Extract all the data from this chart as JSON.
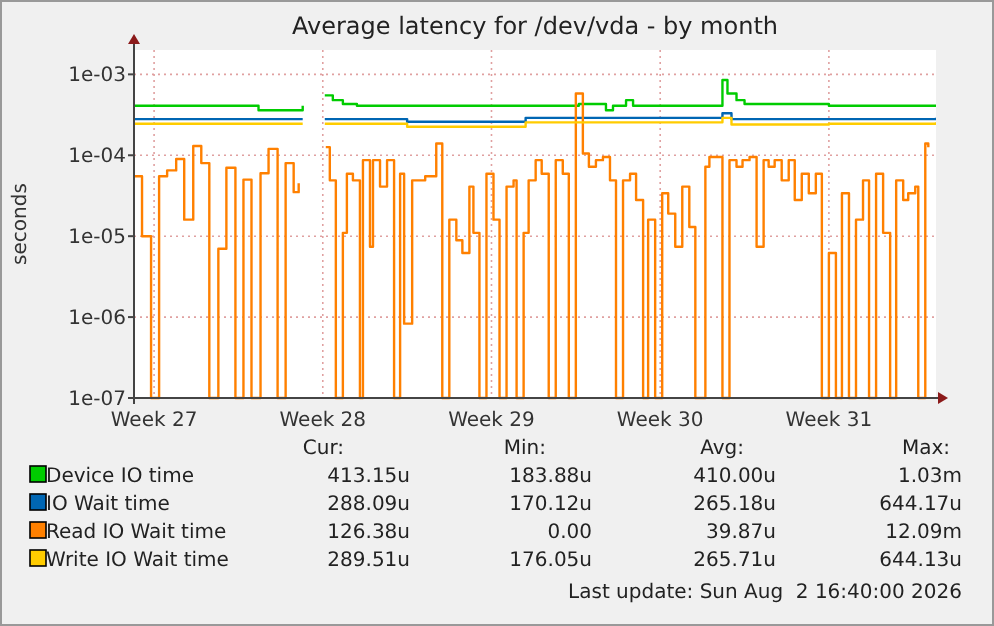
{
  "chart_data": {
    "type": "step",
    "title": "Average latency for /dev/vda - by month",
    "ylabel": "seconds",
    "log": "y",
    "grid": true,
    "legend": "bottom",
    "xlim": [
      "2026-06-30T10:00",
      "2026-08-02T16:40"
    ],
    "xticks": [
      {
        "value": "2026-07-01T06:00",
        "label": "Week 27"
      },
      {
        "value": "2026-07-08T06:00",
        "label": "Week 28"
      },
      {
        "value": "2026-07-15T06:00",
        "label": "Week 29"
      },
      {
        "value": "2026-07-22T06:00",
        "label": "Week 30"
      },
      {
        "value": "2026-07-29T06:00",
        "label": "Week 31"
      }
    ],
    "ylim": [
      1e-07,
      0.002
    ],
    "yticks": [
      {
        "value": 1e-07,
        "label": "1e-07"
      },
      {
        "value": 1e-06,
        "label": "1e-06"
      },
      {
        "value": 1e-05,
        "label": "1e-05"
      },
      {
        "value": 0.0001,
        "label": "1e-04"
      },
      {
        "value": 0.001,
        "label": "1e-03"
      }
    ],
    "series": [
      {
        "name": "Device IO time",
        "color": "#00cc00",
        "x": [
          "2026-06-30T10:00",
          "2026-07-02T16:00",
          "2026-07-05T07:00",
          "2026-07-05T14:00",
          "2026-07-07T10:00",
          "2026-07-07T18:00",
          "2026-07-08T08:00",
          "2026-07-08T16:00",
          "2026-07-09T02:00",
          "2026-07-09T16:00",
          "2026-07-12T11:00",
          "2026-07-15T06:00",
          "2026-07-18T18:00",
          "2026-07-18T21:00",
          "2026-07-20T00:00",
          "2026-07-20T07:00",
          "2026-07-20T20:00",
          "2026-07-21T03:00",
          "2026-07-24T08:00",
          "2026-07-24T20:00",
          "2026-07-25T01:00",
          "2026-07-25T10:00",
          "2026-07-25T18:00",
          "2026-07-29T06:00",
          "2026-08-02T16:40"
        ],
        "values": [
          0.00041,
          0.00041,
          0.00041,
          0.00036,
          0.00041,
          null,
          0.00055,
          0.00048,
          0.00043,
          0.00041,
          0.00041,
          0.00041,
          0.00041,
          0.00043,
          0.00036,
          0.00041,
          0.00048,
          0.00041,
          0.00041,
          0.00085,
          0.00058,
          0.00048,
          0.00043,
          0.00041,
          0.00041
        ]
      },
      {
        "name": "IO Wait time",
        "color": "#0066b3",
        "x": [
          "2026-06-30T10:00",
          "2026-07-04T18:00",
          "2026-07-07T10:00",
          "2026-07-07T18:00",
          "2026-07-08T08:00",
          "2026-07-11T18:00",
          "2026-07-15T06:00",
          "2026-07-16T16:00",
          "2026-07-22T06:00",
          "2026-07-24T20:00",
          "2026-07-25T05:00",
          "2026-07-29T06:00",
          "2026-08-02T16:40"
        ],
        "values": [
          0.00028,
          0.00028,
          0.00028,
          null,
          0.00028,
          0.00026,
          0.00026,
          0.00029,
          0.00029,
          0.00033,
          0.00028,
          0.00028,
          0.00029
        ]
      },
      {
        "name": "Read IO Wait time",
        "color": "#ff8000",
        "x": [
          "2026-06-30T10:00",
          "2026-06-30T18:00",
          "2026-07-01T03:00",
          "2026-07-01T11:00",
          "2026-07-01T19:00",
          "2026-07-02T04:00",
          "2026-07-02T12:00",
          "2026-07-02T21:00",
          "2026-07-03T05:00",
          "2026-07-03T13:00",
          "2026-07-03T22:00",
          "2026-07-04T06:00",
          "2026-07-04T15:00",
          "2026-07-04T23:00",
          "2026-07-05T07:00",
          "2026-07-05T16:00",
          "2026-07-06T00:00",
          "2026-07-06T09:00",
          "2026-07-06T17:00",
          "2026-07-07T01:00",
          "2026-07-07T06:00",
          "2026-07-07T18:00",
          "2026-07-08T09:00",
          "2026-07-08T13:00",
          "2026-07-08T19:00",
          "2026-07-09T02:00",
          "2026-07-09T06:00",
          "2026-07-09T12:00",
          "2026-07-09T19:00",
          "2026-07-09T22:00",
          "2026-07-10T05:00",
          "2026-07-10T08:00",
          "2026-07-10T15:00",
          "2026-07-10T22:00",
          "2026-07-11T05:00",
          "2026-07-11T11:00",
          "2026-07-11T15:00",
          "2026-07-11T23:00",
          "2026-07-12T12:00",
          "2026-07-12T23:00",
          "2026-07-13T05:00",
          "2026-07-13T12:00",
          "2026-07-13T19:00",
          "2026-07-14T01:00",
          "2026-07-14T08:00",
          "2026-07-14T12:00",
          "2026-07-14T18:00",
          "2026-07-15T01:00",
          "2026-07-15T08:00",
          "2026-07-15T14:00",
          "2026-07-15T21:00",
          "2026-07-16T04:00",
          "2026-07-16T07:00",
          "2026-07-16T14:00",
          "2026-07-16T19:00",
          "2026-07-17T02:00",
          "2026-07-17T08:00",
          "2026-07-17T15:00",
          "2026-07-17T22:00",
          "2026-07-18T05:00",
          "2026-07-18T11:00",
          "2026-07-18T18:00",
          "2026-07-19T01:00",
          "2026-07-19T07:00",
          "2026-07-19T14:00",
          "2026-07-19T21:00",
          "2026-07-20T04:00",
          "2026-07-20T10:00",
          "2026-07-20T17:00",
          "2026-07-21T00:00",
          "2026-07-21T06:00",
          "2026-07-21T13:00",
          "2026-07-21T18:00",
          "2026-07-22T01:00",
          "2026-07-22T08:00",
          "2026-07-22T14:00",
          "2026-07-22T21:00",
          "2026-07-23T04:00",
          "2026-07-23T11:00",
          "2026-07-23T17:00",
          "2026-07-24T03:00",
          "2026-07-24T07:00",
          "2026-07-24T13:00",
          "2026-07-24T20:00",
          "2026-07-25T03:00",
          "2026-07-25T10:00",
          "2026-07-25T16:00",
          "2026-07-25T23:00",
          "2026-07-26T06:00",
          "2026-07-26T13:00",
          "2026-07-26T18:00",
          "2026-07-27T00:00",
          "2026-07-27T07:00",
          "2026-07-27T14:00",
          "2026-07-27T20:00",
          "2026-07-28T03:00",
          "2026-07-28T10:00",
          "2026-07-28T17:00",
          "2026-07-28T23:00",
          "2026-07-29T06:00",
          "2026-07-29T13:00",
          "2026-07-29T19:00",
          "2026-07-30T02:00",
          "2026-07-30T09:00",
          "2026-07-30T16:00",
          "2026-07-30T22:00",
          "2026-07-31T05:00",
          "2026-07-31T12:00",
          "2026-07-31T19:00",
          "2026-08-01T01:00",
          "2026-08-01T08:00",
          "2026-08-01T13:00",
          "2026-08-01T20:00",
          "2026-08-01T23:00",
          "2026-08-02T06:00",
          "2026-08-02T09:00"
        ],
        "values": [
          5.5e-05,
          1e-05,
          1e-07,
          5.5e-05,
          6.5e-05,
          9e-05,
          1.6e-05,
          0.00013,
          8e-05,
          1e-07,
          7e-06,
          7e-05,
          1e-07,
          5e-05,
          1e-07,
          6e-05,
          0.00012,
          1e-07,
          8e-05,
          3.5e-05,
          4.5e-05,
          null,
          0.000126,
          4.9e-05,
          1e-07,
          1.1e-05,
          5.9e-05,
          4.9e-05,
          1e-07,
          8.7e-05,
          7.4e-06,
          8.7e-05,
          4.1e-05,
          8.7e-05,
          1e-07,
          5.9e-05,
          8.3e-07,
          4.9e-05,
          5.5e-05,
          0.00014,
          1e-07,
          1.6e-05,
          8.9e-06,
          6.2e-06,
          4.1e-05,
          1.1e-05,
          1e-07,
          5.9e-05,
          1.6e-05,
          1e-07,
          4.1e-05,
          4.9e-05,
          1e-07,
          1.1e-05,
          4.9e-05,
          8.7e-05,
          5.9e-05,
          1e-07,
          8.7e-05,
          5.9e-05,
          1e-07,
          0.00058,
          0.000105,
          7.2e-05,
          8.7e-05,
          9.5e-05,
          4.9e-05,
          1e-07,
          4.9e-05,
          5.9e-05,
          2.8e-05,
          1e-07,
          1.6e-05,
          1e-07,
          3.4e-05,
          1.9e-05,
          7.4e-06,
          4.1e-05,
          1.3e-05,
          1e-07,
          7.2e-05,
          9.5e-05,
          9.5e-05,
          1e-07,
          8.7e-05,
          7.2e-05,
          8.7e-05,
          9.5e-05,
          7.4e-06,
          8.7e-05,
          7.2e-05,
          8.7e-05,
          4.9e-05,
          8.7e-05,
          2.8e-05,
          5.9e-05,
          3.4e-05,
          5.9e-05,
          1e-07,
          6.2e-06,
          1e-07,
          3.4e-05,
          1e-07,
          1.6e-05,
          4.9e-05,
          1e-07,
          5.9e-05,
          1.1e-05,
          1e-07,
          4.9e-05,
          2.8e-05,
          3.4e-05,
          4.1e-05,
          1e-07,
          0.00014,
          0.000126
        ]
      },
      {
        "name": "Write IO Wait time",
        "color": "#ffcc00",
        "x": [
          "2026-06-30T10:00",
          "2026-07-04T18:00",
          "2026-07-07T10:00",
          "2026-07-07T18:00",
          "2026-07-08T08:00",
          "2026-07-11T18:00",
          "2026-07-15T06:00",
          "2026-07-16T16:00",
          "2026-07-22T06:00",
          "2026-07-24T20:00",
          "2026-07-25T05:00",
          "2026-07-29T06:00",
          "2026-08-02T16:40"
        ],
        "values": [
          0.000245,
          0.000245,
          0.000245,
          null,
          0.000245,
          0.000225,
          0.000225,
          0.000255,
          0.000255,
          0.00029,
          0.00024,
          0.000245,
          0.000255
        ]
      }
    ],
    "annotations": [
      "Cur:",
      "Min:",
      "Avg:",
      "Max:",
      "413.15u",
      "183.88u",
      "410.00u",
      "1.03m",
      "288.09u",
      "170.12u",
      "265.18u",
      "644.17u",
      "126.38u",
      "0.00",
      "39.87u",
      "12.09m",
      "289.51u",
      "176.05u",
      "265.71u",
      "644.13u",
      "Last update: Sun Aug  2 16:40:00 2026"
    ]
  }
}
